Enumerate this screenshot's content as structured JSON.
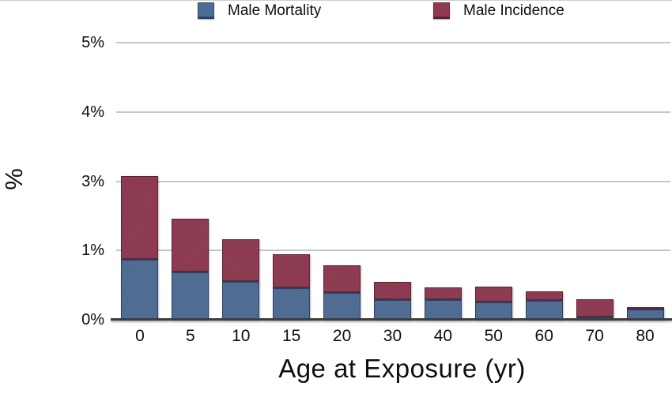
{
  "figure": {
    "x_title": "Age at Exposure (yr)",
    "y_title": "%"
  },
  "chart_data": {
    "type": "bar",
    "stacked": true,
    "title": "",
    "xlabel": "Age at Exposure (yr)",
    "ylabel": "%",
    "categories": [
      "0",
      "5",
      "10",
      "15",
      "20",
      "30",
      "40",
      "50",
      "60",
      "70",
      "80"
    ],
    "series": [
      {
        "name": "Male Mortality",
        "color": "#4e6b94",
        "values": [
          0.88,
          0.69,
          0.56,
          0.47,
          0.4,
          0.3,
          0.3,
          0.26,
          0.28,
          0.05,
          0.16
        ]
      },
      {
        "name": "Male Incidence",
        "color": "#8e3950",
        "values": [
          2.19,
          1.23,
          0.76,
          0.48,
          0.39,
          0.25,
          0.17,
          0.22,
          0.13,
          0.25,
          0.02
        ]
      }
    ],
    "stack_totals": [
      3.07,
      1.92,
      1.32,
      0.95,
      0.79,
      0.55,
      0.47,
      0.48,
      0.41,
      0.3,
      0.18
    ],
    "y_tick_labels": [
      "0%",
      "1%",
      "3%",
      "4%",
      "5%"
    ],
    "y_tick_values": [
      0,
      1,
      3,
      4,
      5
    ],
    "ylim": [
      0,
      5
    ],
    "grid": "horizontal",
    "legend_position": "top"
  }
}
